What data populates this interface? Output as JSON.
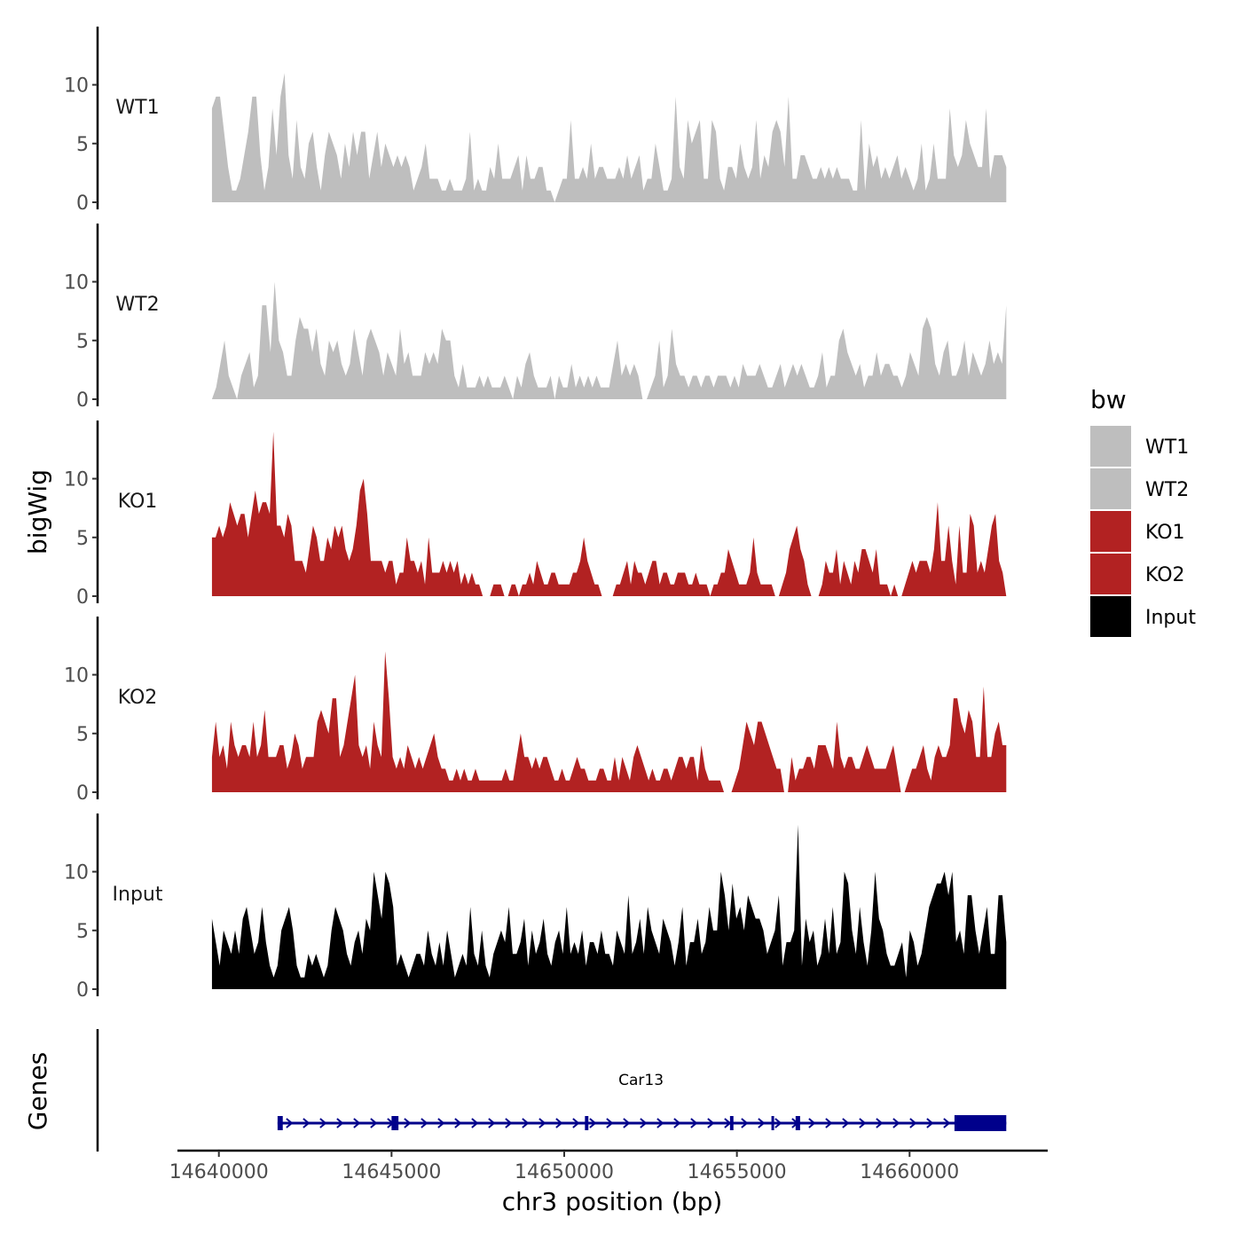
{
  "chart_data": {
    "type": "area",
    "title": "",
    "ylabel": "bigWig",
    "xlabel": "chr3 position (bp)",
    "gene_panel_label": "Genes",
    "legend_title": "bw",
    "xlim": [
      14638800,
      14664000
    ],
    "x_ticks": [
      14640000,
      14645000,
      14650000,
      14655000,
      14660000
    ],
    "x_tick_labels": [
      "14640000",
      "14645000",
      "14650000",
      "14655000",
      "14660000"
    ],
    "ylim": [
      0,
      14.5
    ],
    "y_ticks": [
      0,
      5,
      10
    ],
    "y_tick_labels": [
      "0",
      "5",
      "10"
    ],
    "x_start": 14639800,
    "x_end": 14662800,
    "tracks": [
      {
        "name": "WT1",
        "color": "#BEBEBE",
        "values": [
          8,
          9,
          9,
          6,
          3,
          1,
          1,
          2,
          4,
          6,
          9,
          9,
          4,
          1,
          3,
          8,
          4,
          9,
          11,
          4,
          2,
          7,
          3,
          2,
          5,
          6,
          3,
          1,
          4,
          6,
          5,
          4,
          2,
          5,
          3,
          6,
          4,
          6,
          6,
          2,
          4,
          6,
          3,
          5,
          4,
          3,
          4,
          3,
          4,
          3,
          1,
          2,
          3,
          5,
          2,
          2,
          2,
          1,
          1,
          2,
          1,
          1,
          1,
          2,
          6,
          1,
          2,
          1,
          1,
          3,
          2,
          5,
          2,
          2,
          2,
          3,
          4,
          1,
          4,
          2,
          2,
          3,
          3,
          1,
          1,
          0,
          1,
          2,
          2,
          7,
          2,
          2,
          3,
          2,
          5,
          2,
          3,
          3,
          2,
          2,
          2,
          3,
          2,
          4,
          2,
          3,
          4,
          1,
          2,
          2,
          5,
          3,
          1,
          1,
          2,
          9,
          3,
          2,
          7,
          5,
          6,
          7,
          2,
          2,
          7,
          6,
          2,
          1,
          3,
          3,
          2,
          5,
          3,
          2,
          3,
          7,
          2,
          4,
          3,
          6,
          7,
          6,
          3,
          9,
          2,
          2,
          4,
          4,
          3,
          2,
          2,
          3,
          2,
          3,
          2,
          3,
          2,
          2,
          2,
          1,
          1,
          7,
          1,
          5,
          3,
          4,
          2,
          3,
          2,
          3,
          4,
          2,
          3,
          2,
          1,
          2,
          5,
          1,
          2,
          5,
          2,
          2,
          2,
          8,
          4,
          3,
          4,
          7,
          5,
          4,
          3,
          3,
          8,
          2,
          4,
          4,
          4,
          3
        ]
      },
      {
        "name": "WT2",
        "color": "#BEBEBE",
        "values": [
          0,
          1,
          3,
          5,
          2,
          1,
          0,
          2,
          3,
          4,
          1,
          2,
          8,
          8,
          4,
          10,
          5,
          4,
          2,
          2,
          5,
          7,
          6,
          6,
          4,
          6,
          3,
          2,
          5,
          4,
          5,
          3,
          2,
          3,
          6,
          4,
          2,
          5,
          6,
          5,
          4,
          2,
          4,
          3,
          2,
          6,
          3,
          4,
          2,
          2,
          2,
          4,
          3,
          4,
          3,
          6,
          5,
          5,
          2,
          1,
          3,
          1,
          1,
          1,
          2,
          1,
          2,
          1,
          1,
          1,
          2,
          1,
          0,
          2,
          1,
          3,
          4,
          2,
          1,
          1,
          1,
          2,
          0,
          2,
          1,
          1,
          3,
          1,
          2,
          1,
          2,
          1,
          2,
          1,
          1,
          1,
          3,
          5,
          2,
          3,
          2,
          3,
          2,
          0,
          0,
          1,
          2,
          5,
          1,
          2,
          6,
          3,
          2,
          2,
          1,
          2,
          2,
          1,
          2,
          2,
          1,
          2,
          2,
          2,
          1,
          2,
          1,
          3,
          2,
          2,
          2,
          3,
          2,
          1,
          1,
          2,
          3,
          1,
          2,
          3,
          2,
          3,
          2,
          1,
          1,
          2,
          4,
          1,
          2,
          2,
          5,
          6,
          4,
          3,
          2,
          3,
          1,
          2,
          2,
          4,
          2,
          3,
          3,
          2,
          2,
          1,
          2,
          4,
          3,
          2,
          6,
          7,
          6,
          3,
          2,
          4,
          5,
          2,
          2,
          3,
          5,
          2,
          4,
          3,
          2,
          3,
          5,
          3,
          4,
          3,
          8
        ]
      },
      {
        "name": "KO1",
        "color": "#B22222",
        "values": [
          5,
          5,
          6,
          5,
          6,
          8,
          7,
          6,
          7,
          7,
          5,
          7,
          9,
          7,
          8,
          8,
          7,
          14,
          6,
          6,
          5,
          7,
          6,
          3,
          3,
          3,
          2,
          4,
          6,
          5,
          3,
          3,
          5,
          4,
          6,
          5,
          6,
          4,
          3,
          4,
          6,
          9,
          10,
          7,
          3,
          3,
          3,
          3,
          2,
          3,
          3,
          1,
          2,
          2,
          5,
          3,
          3,
          2,
          3,
          1,
          5,
          2,
          2,
          2,
          3,
          2,
          3,
          2,
          3,
          1,
          2,
          1,
          2,
          1,
          1,
          0,
          0,
          0,
          1,
          1,
          1,
          0,
          0,
          1,
          1,
          0,
          1,
          1,
          2,
          1,
          3,
          2,
          1,
          1,
          2,
          2,
          1,
          1,
          1,
          1,
          2,
          2,
          3,
          5,
          3,
          2,
          1,
          1,
          0,
          0,
          0,
          0,
          1,
          1,
          2,
          3,
          1,
          3,
          2,
          2,
          1,
          2,
          3,
          3,
          1,
          2,
          2,
          1,
          1,
          2,
          2,
          2,
          1,
          1,
          2,
          1,
          1,
          1,
          0,
          1,
          1,
          2,
          2,
          4,
          3,
          2,
          1,
          1,
          1,
          2,
          5,
          2,
          1,
          1,
          1,
          1,
          0,
          0,
          1,
          2,
          4,
          5,
          6,
          4,
          3,
          1,
          0,
          0,
          0,
          1,
          3,
          2,
          2,
          4,
          1,
          3,
          2,
          1,
          3,
          2,
          4,
          4,
          3,
          2,
          4,
          1,
          1,
          1,
          0,
          1,
          0,
          0,
          1,
          2,
          3,
          2,
          3,
          3,
          3,
          2,
          4,
          8,
          3,
          3,
          6,
          3,
          1,
          6,
          2,
          2,
          7,
          6,
          2,
          3,
          2,
          4,
          6,
          7,
          3,
          2,
          0
        ]
      },
      {
        "name": "KO2",
        "color": "#B22222",
        "values": [
          3,
          6,
          3,
          4,
          2,
          6,
          4,
          3,
          4,
          4,
          3,
          6,
          3,
          4,
          7,
          3,
          3,
          3,
          4,
          4,
          2,
          3,
          5,
          4,
          2,
          3,
          3,
          3,
          6,
          7,
          6,
          5,
          8,
          8,
          3,
          4,
          6,
          8,
          10,
          4,
          3,
          4,
          2,
          6,
          4,
          3,
          12,
          8,
          3,
          2,
          3,
          2,
          4,
          3,
          2,
          3,
          2,
          3,
          4,
          5,
          3,
          2,
          2,
          1,
          1,
          2,
          1,
          2,
          1,
          1,
          2,
          1,
          1,
          1,
          1,
          1,
          1,
          1,
          2,
          1,
          1,
          3,
          5,
          3,
          3,
          2,
          3,
          2,
          3,
          3,
          2,
          1,
          1,
          2,
          1,
          1,
          2,
          3,
          2,
          2,
          1,
          1,
          1,
          2,
          2,
          1,
          1,
          3,
          1,
          3,
          2,
          1,
          3,
          4,
          3,
          2,
          1,
          2,
          1,
          1,
          2,
          2,
          1,
          2,
          3,
          3,
          2,
          3,
          3,
          1,
          4,
          2,
          1,
          1,
          1,
          1,
          0,
          0,
          0,
          1,
          2,
          4,
          6,
          5,
          4,
          6,
          6,
          5,
          4,
          3,
          2,
          2,
          0,
          0,
          3,
          1,
          2,
          2,
          3,
          3,
          2,
          4,
          4,
          4,
          3,
          2,
          6,
          3,
          2,
          3,
          3,
          2,
          2,
          3,
          4,
          3,
          2,
          2,
          2,
          2,
          3,
          4,
          2,
          0,
          0,
          1,
          2,
          2,
          3,
          4,
          2,
          1,
          3,
          4,
          3,
          3,
          4,
          8,
          8,
          6,
          5,
          7,
          6,
          3,
          3,
          9,
          3,
          3,
          5,
          6,
          4,
          4
        ]
      },
      {
        "name": "Input",
        "color": "#000000",
        "values": [
          6,
          4,
          2,
          5,
          4,
          3,
          5,
          3,
          6,
          7,
          5,
          3,
          4,
          7,
          4,
          2,
          1,
          2,
          5,
          6,
          7,
          5,
          2,
          1,
          1,
          3,
          2,
          3,
          2,
          1,
          2,
          5,
          7,
          6,
          5,
          3,
          2,
          4,
          5,
          3,
          6,
          5,
          10,
          8,
          6,
          10,
          9,
          7,
          2,
          3,
          2,
          1,
          2,
          3,
          3,
          2,
          5,
          3,
          2,
          4,
          2,
          5,
          3,
          1,
          2,
          3,
          2,
          7,
          3,
          2,
          5,
          2,
          1,
          3,
          4,
          5,
          4,
          7,
          3,
          3,
          4,
          6,
          2,
          5,
          3,
          4,
          6,
          3,
          2,
          4,
          5,
          3,
          7,
          3,
          4,
          3,
          5,
          2,
          4,
          4,
          3,
          5,
          3,
          3,
          2,
          5,
          4,
          3,
          8,
          3,
          4,
          6,
          3,
          7,
          5,
          4,
          3,
          6,
          5,
          4,
          2,
          4,
          7,
          2,
          4,
          4,
          6,
          3,
          4,
          7,
          5,
          5,
          10,
          8,
          5,
          9,
          6,
          7,
          5,
          8,
          7,
          6,
          6,
          5,
          3,
          4,
          5,
          8,
          2,
          4,
          4,
          5,
          14,
          2,
          6,
          4,
          5,
          2,
          3,
          6,
          3,
          7,
          3,
          4,
          10,
          9,
          5,
          3,
          7,
          4,
          2,
          5,
          10,
          6,
          5,
          3,
          2,
          2,
          3,
          4,
          1,
          5,
          4,
          2,
          3,
          5,
          7,
          8,
          9,
          9,
          10,
          8,
          10,
          4,
          5,
          3,
          8,
          8,
          5,
          3,
          5,
          7,
          3,
          3,
          8,
          8,
          4
        ]
      }
    ],
    "gene": {
      "name": "Car13",
      "strand": "+",
      "color": "#00008B",
      "start": 14641700,
      "end": 14662800,
      "exons": [
        [
          14641700,
          14641850
        ],
        [
          14645000,
          14645200
        ],
        [
          14650600,
          14650700
        ],
        [
          14654800,
          14654900
        ],
        [
          14656000,
          14656050
        ],
        [
          14656700,
          14656830
        ],
        [
          14661300,
          14662800
        ]
      ]
    }
  }
}
